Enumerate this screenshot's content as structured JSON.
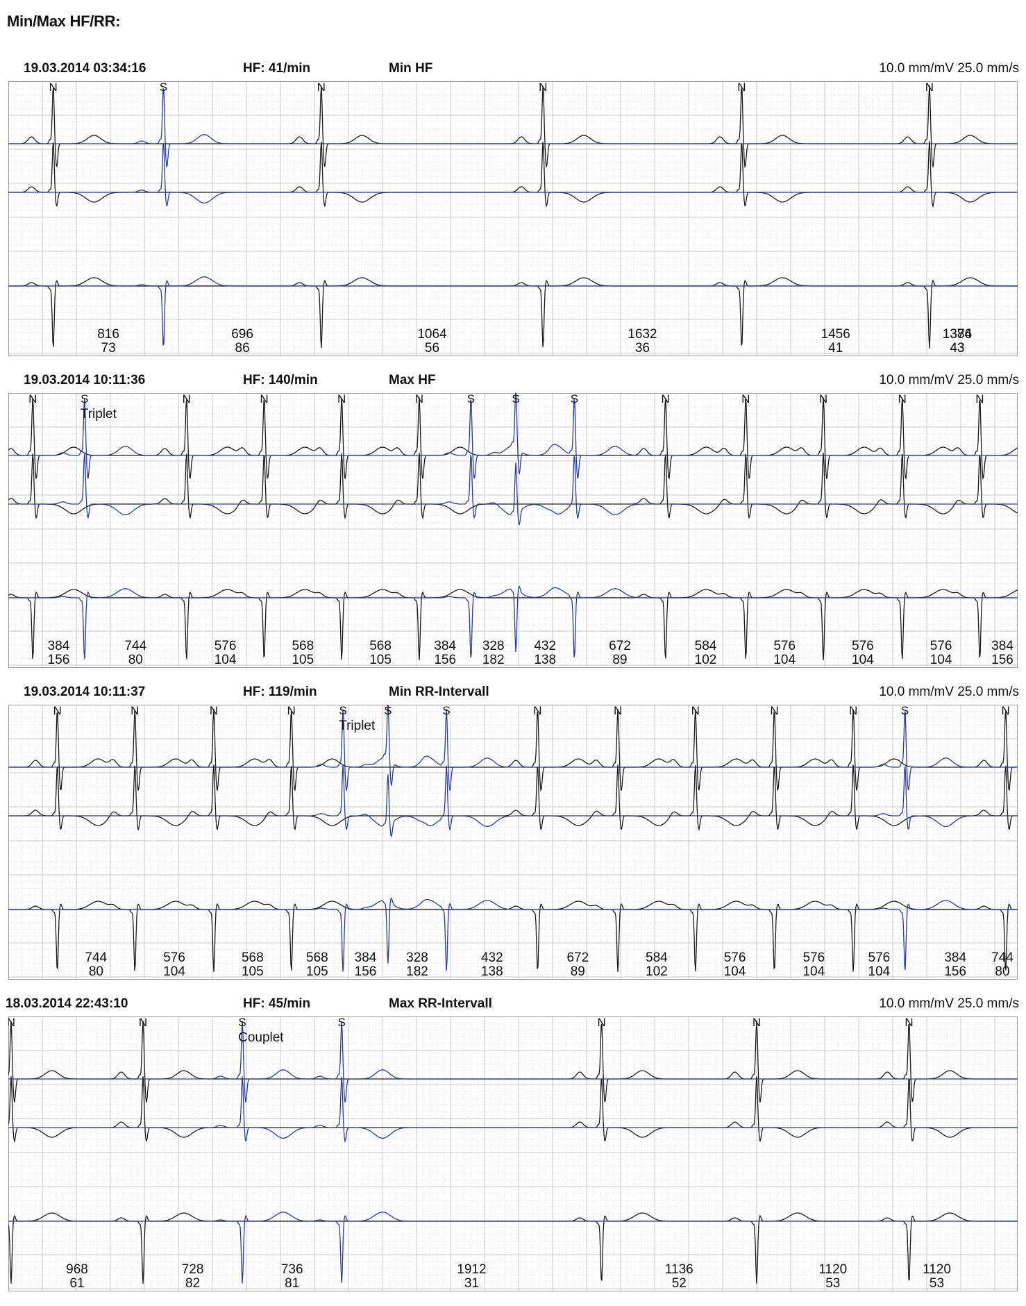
{
  "page": {
    "title": "Min/Max HF/RR:"
  },
  "colors": {
    "normal": "#1a1a1a",
    "supraventricular": "#2a3a9e",
    "grid": "#c8c8c8",
    "grid_minor": "#c0c0c0"
  },
  "strips": [
    {
      "date": "19.03.2014 03:34:16",
      "hf": "HF: 41/min",
      "label": "Min HF",
      "scale": "10.0 mm/mV  25.0 mm/s",
      "annotation": "",
      "beats": [
        {
          "type": "N",
          "t": 0.33
        },
        {
          "type": "S",
          "t": 1.14
        },
        {
          "type": "N",
          "t": 2.3
        },
        {
          "type": "N",
          "t": 3.93
        },
        {
          "type": "N",
          "t": 5.39
        },
        {
          "type": "N",
          "t": 6.77
        }
      ],
      "rr": [
        {
          "ms": "816",
          "bpm": "73"
        },
        {
          "ms": "696",
          "bpm": "86"
        },
        {
          "ms": "1064",
          "bpm": "56"
        },
        {
          "ms": "1632",
          "bpm": "36"
        },
        {
          "ms": "1456",
          "bpm": "41"
        },
        {
          "ms": "1384",
          "bpm": "43"
        },
        {
          "ms": "1376",
          "bpm": "43"
        }
      ]
    },
    {
      "date": "19.03.2014 10:11:36",
      "hf": "HF: 140/min",
      "label": "Max HF",
      "scale": "10.0 mm/mV  25.0 mm/s",
      "annotation": "Triplet",
      "beats": [
        {
          "type": "N",
          "t": 0.18
        },
        {
          "type": "S",
          "t": 0.56
        },
        {
          "type": "N",
          "t": 1.31
        },
        {
          "type": "N",
          "t": 1.88
        },
        {
          "type": "N",
          "t": 2.45
        },
        {
          "type": "N",
          "t": 3.02
        },
        {
          "type": "S",
          "t": 3.4
        },
        {
          "type": "S",
          "t": 3.73
        },
        {
          "type": "S",
          "t": 4.16
        },
        {
          "type": "N",
          "t": 4.83
        },
        {
          "type": "N",
          "t": 5.42
        },
        {
          "type": "N",
          "t": 5.99
        },
        {
          "type": "N",
          "t": 6.57
        },
        {
          "type": "N",
          "t": 7.14
        }
      ],
      "rr": [
        {
          "ms": "384",
          "bpm": "156"
        },
        {
          "ms": "744",
          "bpm": "80"
        },
        {
          "ms": "576",
          "bpm": "104"
        },
        {
          "ms": "568",
          "bpm": "105"
        },
        {
          "ms": "568",
          "bpm": "105"
        },
        {
          "ms": "384",
          "bpm": "156"
        },
        {
          "ms": "328",
          "bpm": "182"
        },
        {
          "ms": "432",
          "bpm": "138"
        },
        {
          "ms": "672",
          "bpm": "89"
        },
        {
          "ms": "584",
          "bpm": "102"
        },
        {
          "ms": "576",
          "bpm": "104"
        },
        {
          "ms": "576",
          "bpm": "104"
        },
        {
          "ms": "576",
          "bpm": "104"
        },
        {
          "ms": "384",
          "bpm": "156"
        }
      ]
    },
    {
      "date": "19.03.2014 10:11:37",
      "hf": "HF: 119/min",
      "label": "Min RR-Intervall",
      "scale": "10.0 mm/mV  25.0 mm/s",
      "annotation": "Triplet",
      "beats": [
        {
          "type": "N",
          "t": 0.36
        },
        {
          "type": "N",
          "t": 0.93
        },
        {
          "type": "N",
          "t": 1.51
        },
        {
          "type": "N",
          "t": 2.08
        },
        {
          "type": "S",
          "t": 2.46
        },
        {
          "type": "S",
          "t": 2.79
        },
        {
          "type": "S",
          "t": 3.22
        },
        {
          "type": "N",
          "t": 3.89
        },
        {
          "type": "N",
          "t": 4.48
        },
        {
          "type": "N",
          "t": 5.05
        },
        {
          "type": "N",
          "t": 5.63
        },
        {
          "type": "N",
          "t": 6.21
        },
        {
          "type": "S",
          "t": 6.59
        },
        {
          "type": "N",
          "t": 7.33
        }
      ],
      "rr": [
        {
          "ms": "744",
          "bpm": "80"
        },
        {
          "ms": "576",
          "bpm": "104"
        },
        {
          "ms": "568",
          "bpm": "105"
        },
        {
          "ms": "568",
          "bpm": "105"
        },
        {
          "ms": "384",
          "bpm": "156"
        },
        {
          "ms": "328",
          "bpm": "182"
        },
        {
          "ms": "432",
          "bpm": "138"
        },
        {
          "ms": "672",
          "bpm": "89"
        },
        {
          "ms": "584",
          "bpm": "102"
        },
        {
          "ms": "576",
          "bpm": "104"
        },
        {
          "ms": "576",
          "bpm": "104"
        },
        {
          "ms": "576",
          "bpm": "104"
        },
        {
          "ms": "384",
          "bpm": "156"
        },
        {
          "ms": "744",
          "bpm": "80"
        }
      ]
    },
    {
      "date": "18.03.2014 22:43:10",
      "hf": "HF: 45/min",
      "label": "Max RR-Intervall",
      "scale": "10.0 mm/mV  25.0 mm/s",
      "annotation": "Couplet",
      "beats": [
        {
          "type": "N",
          "t": 0.02
        },
        {
          "type": "N",
          "t": 0.99
        },
        {
          "type": "S",
          "t": 1.72
        },
        {
          "type": "S",
          "t": 2.45
        },
        {
          "type": "N",
          "t": 4.36
        },
        {
          "type": "N",
          "t": 5.5
        },
        {
          "type": "N",
          "t": 6.62
        }
      ],
      "rr": [
        {
          "ms": "968",
          "bpm": "61"
        },
        {
          "ms": "728",
          "bpm": "82"
        },
        {
          "ms": "736",
          "bpm": "81"
        },
        {
          "ms": "1912",
          "bpm": "31"
        },
        {
          "ms": "1136",
          "bpm": "52"
        },
        {
          "ms": "1120",
          "bpm": "53"
        },
        {
          "ms": "1120",
          "bpm": "53"
        }
      ]
    }
  ]
}
